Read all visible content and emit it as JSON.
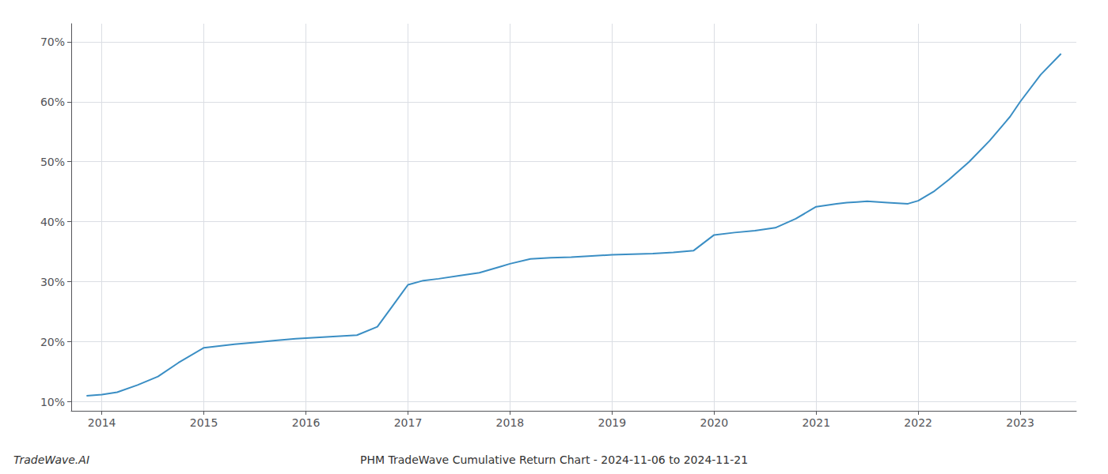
{
  "chart_data": {
    "type": "line",
    "title": "PHM TradeWave Cumulative Return Chart - 2024-11-06 to 2024-11-21",
    "annotations": [
      "TradeWave.AI"
    ],
    "x": [
      2013.85,
      2014.0,
      2014.15,
      2014.35,
      2014.55,
      2014.75,
      2015.0,
      2015.15,
      2015.3,
      2015.5,
      2015.7,
      2015.9,
      2016.1,
      2016.3,
      2016.5,
      2016.7,
      2016.85,
      2017.0,
      2017.15,
      2017.3,
      2017.5,
      2017.7,
      2017.9,
      2018.0,
      2018.2,
      2018.4,
      2018.6,
      2018.8,
      2019.0,
      2019.2,
      2019.4,
      2019.6,
      2019.8,
      2020.0,
      2020.2,
      2020.4,
      2020.6,
      2020.8,
      2021.0,
      2021.2,
      2021.3,
      2021.4,
      2021.5,
      2021.7,
      2021.9,
      2022.0,
      2022.15,
      2022.3,
      2022.5,
      2022.7,
      2022.9,
      2023.0,
      2023.2,
      2023.4
    ],
    "values": [
      11.0,
      11.2,
      11.6,
      12.8,
      14.2,
      16.5,
      19.0,
      19.3,
      19.6,
      19.9,
      20.2,
      20.5,
      20.7,
      20.9,
      21.1,
      22.5,
      26.0,
      29.5,
      30.2,
      30.5,
      31.0,
      31.5,
      32.5,
      33.0,
      33.8,
      34.0,
      34.1,
      34.3,
      34.5,
      34.6,
      34.7,
      34.9,
      35.2,
      37.8,
      38.2,
      38.5,
      39.0,
      40.5,
      42.5,
      43.0,
      43.2,
      43.3,
      43.4,
      43.2,
      43.0,
      43.5,
      45.0,
      47.0,
      50.0,
      53.5,
      57.5,
      60.0,
      64.5,
      68.0
    ],
    "color": "#3a8ec4",
    "xlim": [
      2013.7,
      2023.55
    ],
    "ylim": [
      8.5,
      73
    ],
    "xticks": [
      2014,
      2015,
      2016,
      2017,
      2018,
      2019,
      2020,
      2021,
      2022,
      2023
    ],
    "yticks": [
      {
        "value": 10,
        "label": "10%"
      },
      {
        "value": 20,
        "label": "20%"
      },
      {
        "value": 30,
        "label": "30%"
      },
      {
        "value": 40,
        "label": "40%"
      },
      {
        "value": 50,
        "label": "50%"
      },
      {
        "value": 60,
        "label": "60%"
      },
      {
        "value": 70,
        "label": "70%"
      }
    ],
    "grid": true
  }
}
